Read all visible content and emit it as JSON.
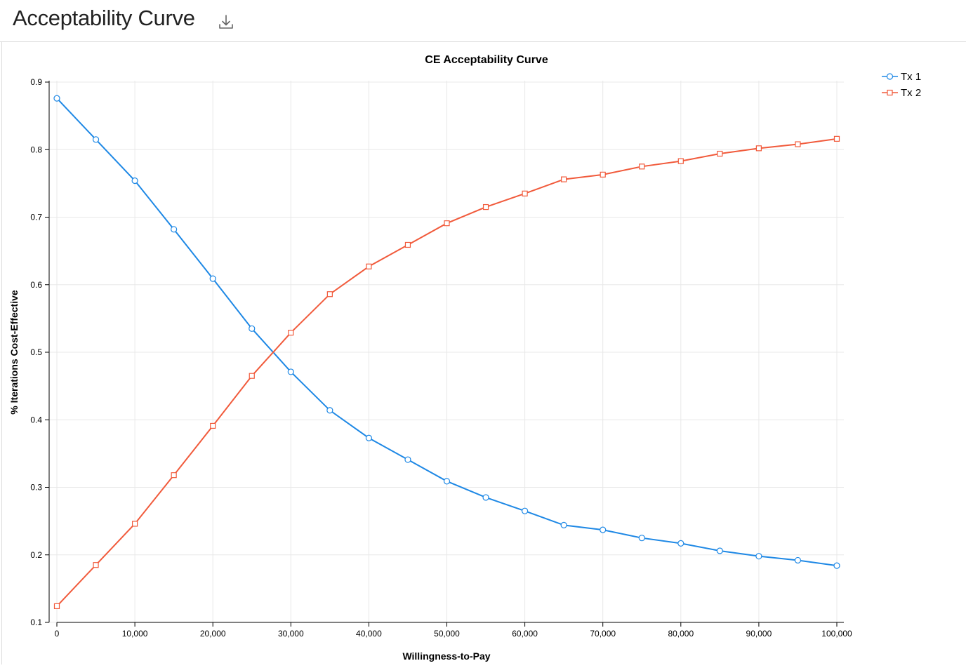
{
  "header": {
    "title": "Acceptability Curve",
    "download_icon": "download-icon"
  },
  "chart_data": {
    "type": "line",
    "title": "CE Acceptability Curve",
    "xlabel": "Willingness-to-Pay",
    "ylabel": "% Iterations Cost-Effective",
    "xlim": [
      0,
      100000
    ],
    "ylim": [
      0.1,
      0.9
    ],
    "x_ticks": [
      0,
      10000,
      20000,
      30000,
      40000,
      50000,
      60000,
      70000,
      80000,
      90000,
      100000
    ],
    "x_tick_labels": [
      "0",
      "10,000",
      "20,000",
      "30,000",
      "40,000",
      "50,000",
      "60,000",
      "70,000",
      "80,000",
      "90,000",
      "100,000"
    ],
    "y_ticks": [
      0.1,
      0.2,
      0.3,
      0.4,
      0.5,
      0.6,
      0.7,
      0.8,
      0.9
    ],
    "y_tick_labels": [
      "0.1",
      "0.2",
      "0.3",
      "0.4",
      "0.5",
      "0.6",
      "0.7",
      "0.8",
      "0.9"
    ],
    "grid": true,
    "legend_position": "top-right",
    "x": [
      0,
      5000,
      10000,
      15000,
      20000,
      25000,
      30000,
      35000,
      40000,
      45000,
      50000,
      55000,
      60000,
      65000,
      70000,
      75000,
      80000,
      85000,
      90000,
      95000,
      100000
    ],
    "series": [
      {
        "name": "Tx 1",
        "color": "#1e88e5",
        "marker": "circle",
        "values": [
          0.876,
          0.815,
          0.754,
          0.682,
          0.609,
          0.535,
          0.471,
          0.414,
          0.373,
          0.341,
          0.309,
          0.285,
          0.265,
          0.244,
          0.237,
          0.225,
          0.217,
          0.206,
          0.198,
          0.192,
          0.184
        ]
      },
      {
        "name": "Tx 2",
        "color": "#f15a3b",
        "marker": "square",
        "values": [
          0.124,
          0.185,
          0.246,
          0.318,
          0.391,
          0.465,
          0.529,
          0.586,
          0.627,
          0.659,
          0.691,
          0.715,
          0.735,
          0.756,
          0.763,
          0.775,
          0.783,
          0.794,
          0.802,
          0.808,
          0.816
        ]
      }
    ]
  }
}
